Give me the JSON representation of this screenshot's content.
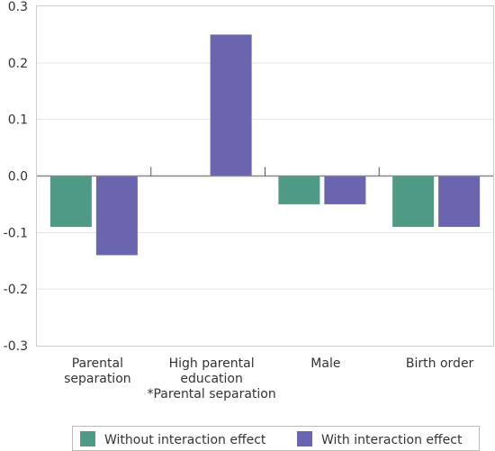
{
  "chart_data": {
    "type": "bar",
    "categories": [
      [
        "Parental",
        "separation"
      ],
      [
        "High parental",
        "education",
        "*Parental separation"
      ],
      [
        "Male"
      ],
      [
        "Birth order"
      ]
    ],
    "series": [
      {
        "name": "Without interaction effect",
        "color": "#4f9a84",
        "values": [
          -0.09,
          null,
          -0.05,
          -0.09
        ]
      },
      {
        "name": "With interaction effect",
        "color": "#6b64ae",
        "values": [
          -0.14,
          0.25,
          -0.05,
          -0.09
        ]
      }
    ],
    "ylim": [
      -0.3,
      0.3
    ],
    "yticks": [
      "0.3",
      "0.2",
      "0.1",
      "0.0",
      "-0.1",
      "-0.2",
      "-0.3"
    ],
    "grid": true,
    "legend_position": "bottom"
  }
}
